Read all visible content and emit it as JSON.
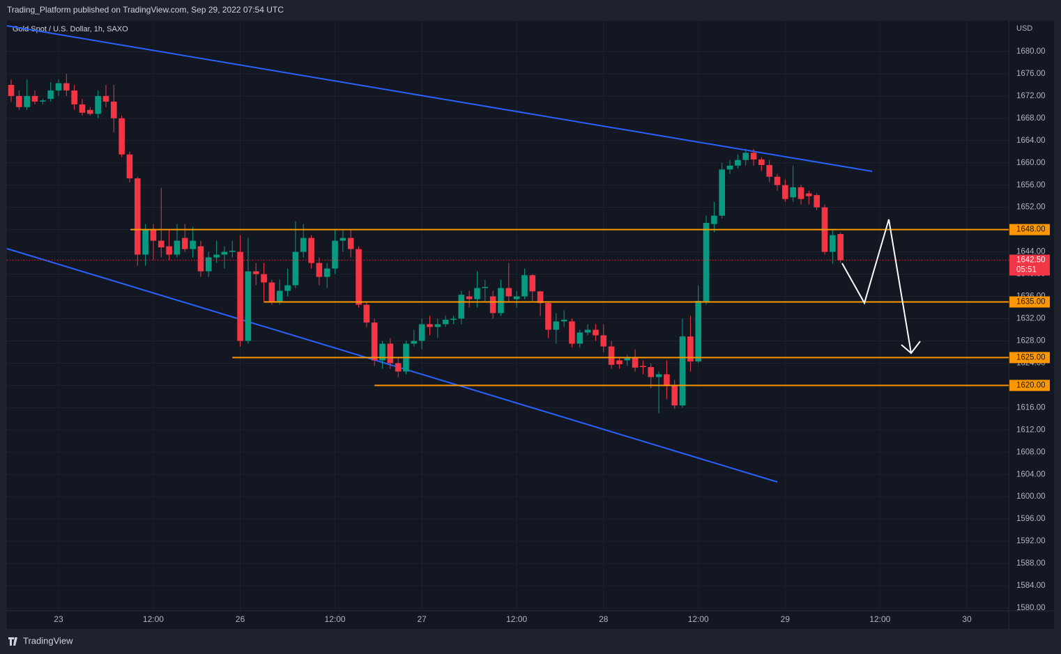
{
  "header": "Trading_Platform published on TradingView.com, Sep 29, 2022 07:54 UTC",
  "footer": "TradingView",
  "chart_data": {
    "type": "candlestick",
    "title": "Gold Spot / U.S. Dollar, 1h, SAXO",
    "currency": "USD",
    "up_color": "#089981",
    "down_color": "#f23645",
    "open": [
      1674,
      1672,
      1670,
      1672,
      1671,
      1671.5,
      1673,
      1674.3,
      1673,
      1670.5,
      1669.5,
      1668.8,
      1672,
      1671,
      1668,
      1661.5,
      1657.2,
      1643.5,
      1648,
      1646,
      1645,
      1643.5,
      1646.5,
      1644.5,
      1645,
      1640.5,
      1643,
      1643.5,
      1644,
      1644,
      1628,
      1640.5,
      1640,
      1638.5,
      1635,
      1637,
      1638,
      1644,
      1646.5,
      1642,
      1639.5,
      1641,
      1646,
      1646.5,
      1644.5,
      1634.5,
      1631.3,
      1624.5,
      1627.5,
      1624,
      1622.5,
      1627.5,
      1628,
      1631,
      1630.5,
      1631,
      1631.8,
      1632,
      1636,
      1635.5,
      1637.5,
      1636,
      1633,
      1637.5,
      1635.5,
      1636,
      1639.8,
      1636.9,
      1634.8,
      1630,
      1631.5,
      1631.5,
      1627.5,
      1629.5,
      1630,
      1629,
      1627,
      1624.5,
      1624.5,
      1625,
      1623.5,
      1623.3,
      1621.5,
      1622,
      1620,
      1616.4,
      1628.8,
      1624.3,
      1635,
      1649,
      1650.5,
      1658.8,
      1659.5,
      1660.5,
      1661.8,
      1660.6,
      1659.6,
      1657.5,
      1656,
      1653.8,
      1655.6,
      1654.5,
      1654.2,
      1652,
      1644,
      1647.2
    ],
    "high": [
      1675,
      1673,
      1675,
      1673,
      1671.5,
      1674.5,
      1675,
      1676,
      1674,
      1671.5,
      1670,
      1673,
      1674,
      1674,
      1668.5,
      1662,
      1657.5,
      1649,
      1649,
      1655.5,
      1648,
      1649,
      1649,
      1648.5,
      1646,
      1644,
      1646,
      1645,
      1646,
      1647,
      1646.5,
      1642,
      1642,
      1639,
      1639,
      1641,
      1649.5,
      1649,
      1647,
      1643,
      1642,
      1648,
      1648,
      1648,
      1645,
      1635,
      1632,
      1628,
      1628.5,
      1625,
      1628,
      1630,
      1632,
      1632.5,
      1632,
      1632.5,
      1632.5,
      1637,
      1637,
      1640.5,
      1639,
      1637,
      1639,
      1642,
      1637,
      1641,
      1640,
      1637,
      1635,
      1633,
      1633.5,
      1632,
      1630,
      1631,
      1631,
      1631,
      1628,
      1625,
      1625.5,
      1626.5,
      1624.5,
      1624,
      1622.5,
      1624.5,
      1621,
      1632,
      1632.5,
      1638,
      1650.5,
      1653,
      1660,
      1660.5,
      1661.5,
      1662.5,
      1662.5,
      1661,
      1660.5,
      1658,
      1657,
      1659.5,
      1656,
      1655,
      1654.5,
      1652.5,
      1648,
      1647.5
    ],
    "low": [
      1671,
      1669.5,
      1669.5,
      1670.5,
      1670.5,
      1671,
      1672,
      1672,
      1669.5,
      1668.5,
      1668.5,
      1668,
      1670,
      1665.5,
      1661,
      1656.5,
      1641.5,
      1641.5,
      1642.5,
      1643,
      1642.5,
      1643,
      1644,
      1643,
      1639.5,
      1639.5,
      1642,
      1641,
      1643,
      1627,
      1627.5,
      1638,
      1635,
      1634.5,
      1634.5,
      1636,
      1637.5,
      1643,
      1641,
      1638,
      1637.5,
      1640,
      1644,
      1643,
      1634,
      1630.5,
      1623.5,
      1623,
      1623,
      1621.5,
      1622,
      1627,
      1626.5,
      1629,
      1628.5,
      1630.5,
      1631,
      1631,
      1634,
      1634,
      1635,
      1632,
      1632.5,
      1635,
      1634,
      1635.5,
      1635,
      1632.5,
      1628.5,
      1627.5,
      1630.5,
      1626.8,
      1626.8,
      1629,
      1628,
      1626,
      1623,
      1623,
      1623.5,
      1622.5,
      1622,
      1619.5,
      1615,
      1617.5,
      1615.8,
      1616,
      1622.5,
      1624,
      1634.5,
      1647.5,
      1650,
      1658,
      1659,
      1659.5,
      1659.5,
      1658.5,
      1656.5,
      1655,
      1653,
      1653,
      1652.5,
      1652.5,
      1651.5,
      1643.5,
      1641.8,
      1642
    ],
    "close": [
      1672,
      1670,
      1672,
      1671,
      1671.2,
      1673,
      1674.3,
      1673,
      1670.5,
      1669,
      1668.8,
      1672,
      1671,
      1668,
      1661.5,
      1657.2,
      1643.5,
      1648,
      1646,
      1644.8,
      1643.5,
      1646,
      1644.5,
      1646,
      1640.5,
      1643,
      1643.5,
      1644,
      1644.2,
      1628,
      1640.5,
      1640,
      1638.5,
      1635,
      1637,
      1638,
      1644,
      1646.5,
      1642,
      1639.5,
      1641,
      1646,
      1646.5,
      1644.5,
      1634.5,
      1631.3,
      1624.5,
      1627.5,
      1624,
      1622.5,
      1627.5,
      1628,
      1631,
      1630.5,
      1631,
      1631.8,
      1632,
      1636.3,
      1635.5,
      1637.5,
      1637.7,
      1633,
      1637.5,
      1636,
      1636,
      1639.8,
      1636.9,
      1634.8,
      1630,
      1631.5,
      1631.8,
      1627.5,
      1629.5,
      1630,
      1629,
      1627,
      1623.7,
      1623.8,
      1625,
      1623.2,
      1623.3,
      1621.5,
      1622,
      1620,
      1616.4,
      1628.8,
      1624.3,
      1635.2,
      1649.2,
      1650.5,
      1658.8,
      1659.5,
      1660.5,
      1661.8,
      1660.6,
      1659.6,
      1657.5,
      1656,
      1653.5,
      1655.6,
      1653.5,
      1654,
      1652,
      1644,
      1647,
      1642.5
    ],
    "xlim": [
      -0.53,
      126.3
    ],
    "xticks": [
      {
        "value": 6,
        "label": "23"
      },
      {
        "value": 18,
        "label": "12:00"
      },
      {
        "value": 29,
        "label": "26"
      },
      {
        "value": 41,
        "label": "12:00"
      },
      {
        "value": 52,
        "label": "27"
      },
      {
        "value": 64,
        "label": "12:00"
      },
      {
        "value": 75,
        "label": "28"
      },
      {
        "value": 87,
        "label": "12:00"
      },
      {
        "value": 98,
        "label": "29"
      },
      {
        "value": 110,
        "label": "12:00"
      },
      {
        "value": 121,
        "label": "30"
      }
    ],
    "ylim": [
      1579.5,
      1685.5
    ],
    "yticks": [
      {
        "value": 1580,
        "label": "1580.00"
      },
      {
        "value": 1584,
        "label": "1584.00"
      },
      {
        "value": 1588,
        "label": "1588.00"
      },
      {
        "value": 1592,
        "label": "1592.00"
      },
      {
        "value": 1596,
        "label": "1596.00"
      },
      {
        "value": 1600,
        "label": "1600.00"
      },
      {
        "value": 1604,
        "label": "1604.00"
      },
      {
        "value": 1608,
        "label": "1608.00"
      },
      {
        "value": 1612,
        "label": "1612.00"
      },
      {
        "value": 1616,
        "label": "1616.00"
      },
      {
        "value": 1620,
        "label": "1620.00"
      },
      {
        "value": 1624,
        "label": "1624.00"
      },
      {
        "value": 1628,
        "label": "1628.00"
      },
      {
        "value": 1632,
        "label": "1632.00"
      },
      {
        "value": 1636,
        "label": "1636.00"
      },
      {
        "value": 1640,
        "label": "1640.00"
      },
      {
        "value": 1644,
        "label": "1644.00"
      },
      {
        "value": 1648,
        "label": "1648.00"
      },
      {
        "value": 1652,
        "label": "1652.00"
      },
      {
        "value": 1656,
        "label": "1656.00"
      },
      {
        "value": 1660,
        "label": "1660.00"
      },
      {
        "value": 1664,
        "label": "1664.00"
      },
      {
        "value": 1668,
        "label": "1668.00"
      },
      {
        "value": 1672,
        "label": "1672.00"
      },
      {
        "value": 1676,
        "label": "1676.00"
      },
      {
        "value": 1680,
        "label": "1680.00"
      }
    ],
    "grid": true,
    "levels": [
      {
        "value": 1648,
        "label": "1648.00"
      },
      {
        "value": 1635,
        "label": "1635.00"
      },
      {
        "value": 1625,
        "label": "1625.00"
      },
      {
        "value": 1620,
        "label": "1620.00"
      }
    ],
    "level_color": "#ff9800",
    "last_price": {
      "value": 1642.5,
      "label": "1642.50"
    },
    "countdown": "05:51"
  }
}
